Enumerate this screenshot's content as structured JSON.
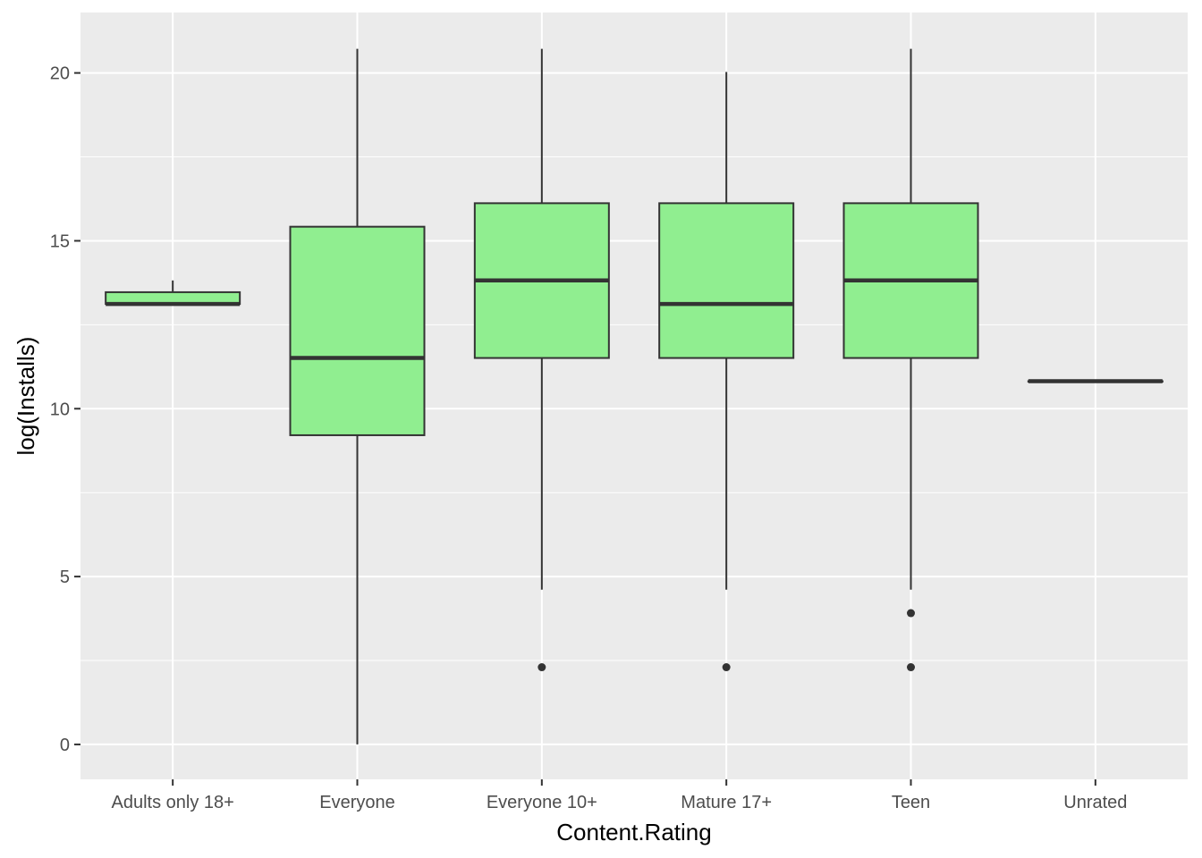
{
  "chart_data": {
    "type": "boxplot",
    "title": "",
    "xlabel": "Content.Rating",
    "ylabel": "log(Installs)",
    "categories": [
      "Adults only 18+",
      "Everyone",
      "Everyone 10+",
      "Mature 17+",
      "Teen",
      "Unrated"
    ],
    "yticks": [
      0,
      5,
      10,
      15,
      20
    ],
    "ytick_labels": [
      "0",
      "5",
      "10",
      "15",
      "20"
    ],
    "ylim": [
      -1.04,
      21.8
    ],
    "grid": true,
    "boxes": [
      {
        "category": "Adults only 18+",
        "whisker_low": 13.12,
        "q1": 13.12,
        "median": 13.12,
        "q3": 13.47,
        "whisker_high": 13.82,
        "outliers": []
      },
      {
        "category": "Everyone",
        "whisker_low": 0.0,
        "q1": 9.21,
        "median": 11.51,
        "q3": 15.42,
        "whisker_high": 20.72,
        "outliers": []
      },
      {
        "category": "Everyone 10+",
        "whisker_low": 4.61,
        "q1": 11.51,
        "median": 13.82,
        "q3": 16.12,
        "whisker_high": 20.72,
        "outliers": [
          2.3
        ]
      },
      {
        "category": "Mature 17+",
        "whisker_low": 4.61,
        "q1": 11.51,
        "median": 13.12,
        "q3": 16.12,
        "whisker_high": 20.03,
        "outliers": [
          2.3
        ]
      },
      {
        "category": "Teen",
        "whisker_low": 4.61,
        "q1": 11.51,
        "median": 13.82,
        "q3": 16.12,
        "whisker_high": 20.72,
        "outliers": [
          3.91,
          2.3
        ]
      },
      {
        "category": "Unrated",
        "whisker_low": 10.82,
        "q1": 10.82,
        "median": 10.82,
        "q3": 10.82,
        "whisker_high": 10.82,
        "outliers": []
      }
    ],
    "colors": {
      "box_fill": "#90EE90",
      "box_line": "#333333",
      "panel_background": "#EBEBEB",
      "grid_line": "#FFFFFF"
    }
  }
}
